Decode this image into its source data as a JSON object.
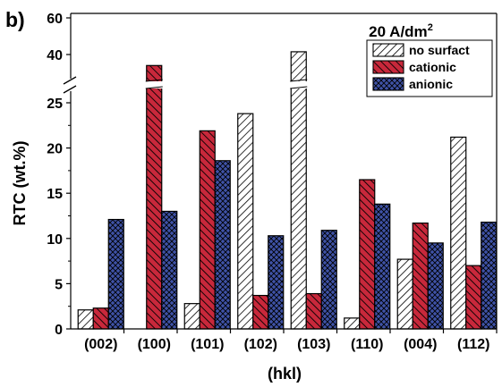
{
  "chart_data": {
    "type": "bar",
    "panel_label": "b)",
    "annotation": {
      "prefix": "20 A/dm",
      "superscript": "2"
    },
    "xlabel": "(hkl)",
    "ylabel": "RTC (wt.%)",
    "categories": [
      "(002)",
      "(100)",
      "(101)",
      "(102)",
      "(103)",
      "(110)",
      "(004)",
      "(112)"
    ],
    "y_axis": {
      "broken": true,
      "lower_range": [
        0,
        27
      ],
      "upper_range": [
        30,
        60
      ],
      "lower_ticks": [
        0,
        5,
        10,
        15,
        20,
        25
      ],
      "upper_ticks": [
        40,
        60
      ]
    },
    "series": [
      {
        "name": "no surfact",
        "color": "#ffffff",
        "pattern": "hatch-white",
        "values": [
          2.1,
          0,
          2.8,
          23.8,
          41.5,
          1.2,
          7.7,
          21.2
        ]
      },
      {
        "name": "cationic",
        "color": "#c8283b",
        "pattern": "hatch-red",
        "values": [
          2.3,
          34.0,
          21.9,
          3.7,
          3.9,
          16.5,
          11.7,
          7.0
        ]
      },
      {
        "name": "anionic",
        "color": "#3f52a6",
        "pattern": "crosshatch-blue",
        "values": [
          12.1,
          13.0,
          18.6,
          10.3,
          10.9,
          13.8,
          9.5,
          11.8
        ]
      }
    ],
    "legend_position": "top-right",
    "grid": false
  }
}
